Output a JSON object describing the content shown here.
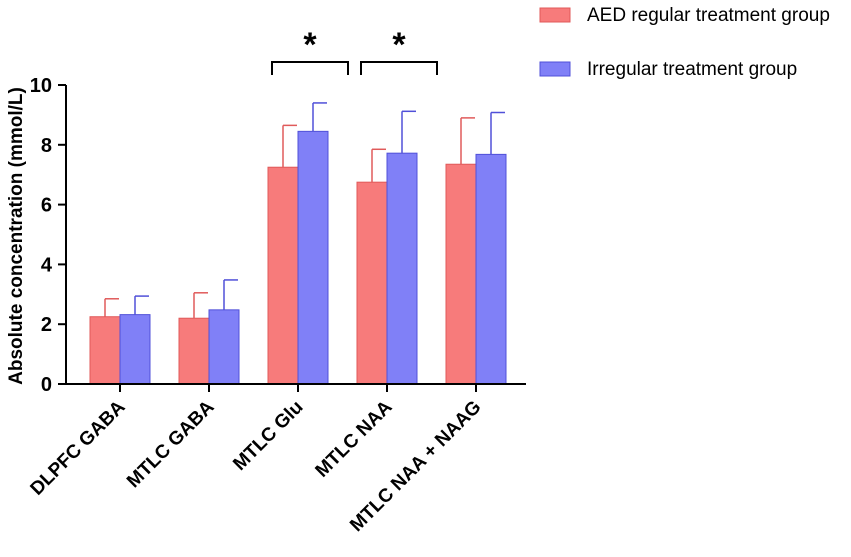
{
  "chart_data": {
    "type": "bar",
    "title": "",
    "xlabel": "",
    "ylabel": "Absolute concentration (mmol/L)",
    "ylim": [
      0,
      10
    ],
    "yticks": [
      0,
      2,
      4,
      6,
      8,
      10
    ],
    "categories": [
      "DLPFC GABA",
      "MTLC GABA",
      "MTLC Glu",
      "MTLC NAA",
      "MTLC NAA + NAAG"
    ],
    "series": [
      {
        "name": "AED regular treatment group",
        "color": "#f77b7b",
        "edge": "#e05a5a",
        "values": [
          2.25,
          2.2,
          7.25,
          6.75,
          7.35
        ],
        "errors": [
          0.6,
          0.85,
          1.4,
          1.1,
          1.55
        ]
      },
      {
        "name": "Irregular treatment group",
        "color": "#8080f7",
        "edge": "#5050d8",
        "values": [
          2.32,
          2.48,
          8.45,
          7.72,
          7.68
        ],
        "errors": [
          0.62,
          1.0,
          0.95,
          1.4,
          1.4
        ]
      }
    ],
    "significance": [
      {
        "category": "MTLC Glu",
        "label": "*"
      },
      {
        "category": "MTLC NAA",
        "label": "*"
      }
    ],
    "legend_position": "top-right"
  }
}
